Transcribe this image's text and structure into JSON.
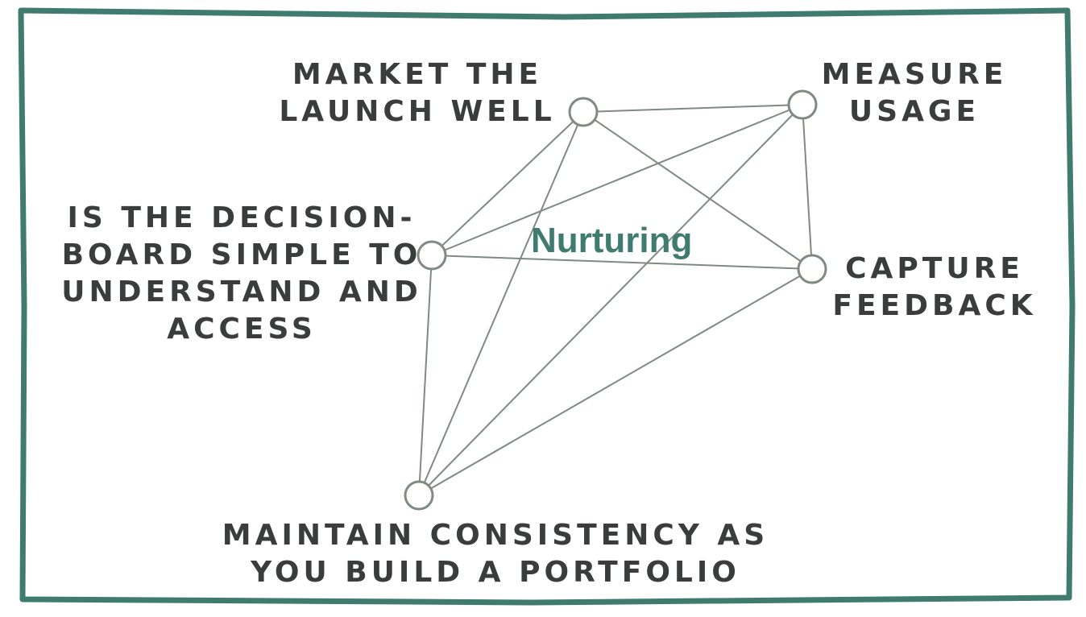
{
  "colors": {
    "frame": "#3f7b6e",
    "line": "#7f8a83",
    "node_stroke": "#7f8a83",
    "text": "#3b3d3c",
    "title": "#3f7b6e"
  },
  "title": "Nurturing",
  "nodes": [
    {
      "id": "market",
      "label": "MARKET THE\nLAUNCH WELL"
    },
    {
      "id": "measure",
      "label": "MEASURE\nUSAGE"
    },
    {
      "id": "decision",
      "label": "IS THE DECISION-\nBOARD SIMPLE TO\nUNDERSTAND AND\nACCESS"
    },
    {
      "id": "feedback",
      "label": "CAPTURE\nFEEDBACK"
    },
    {
      "id": "consistency",
      "label": "MAINTAIN CONSISTENCY AS\nYOU BUILD A PORTFOLIO"
    }
  ],
  "edges": [
    [
      "market",
      "measure"
    ],
    [
      "market",
      "decision"
    ],
    [
      "market",
      "feedback"
    ],
    [
      "market",
      "consistency"
    ],
    [
      "measure",
      "decision"
    ],
    [
      "measure",
      "feedback"
    ],
    [
      "measure",
      "consistency"
    ],
    [
      "decision",
      "feedback"
    ],
    [
      "decision",
      "consistency"
    ],
    [
      "feedback",
      "consistency"
    ]
  ]
}
